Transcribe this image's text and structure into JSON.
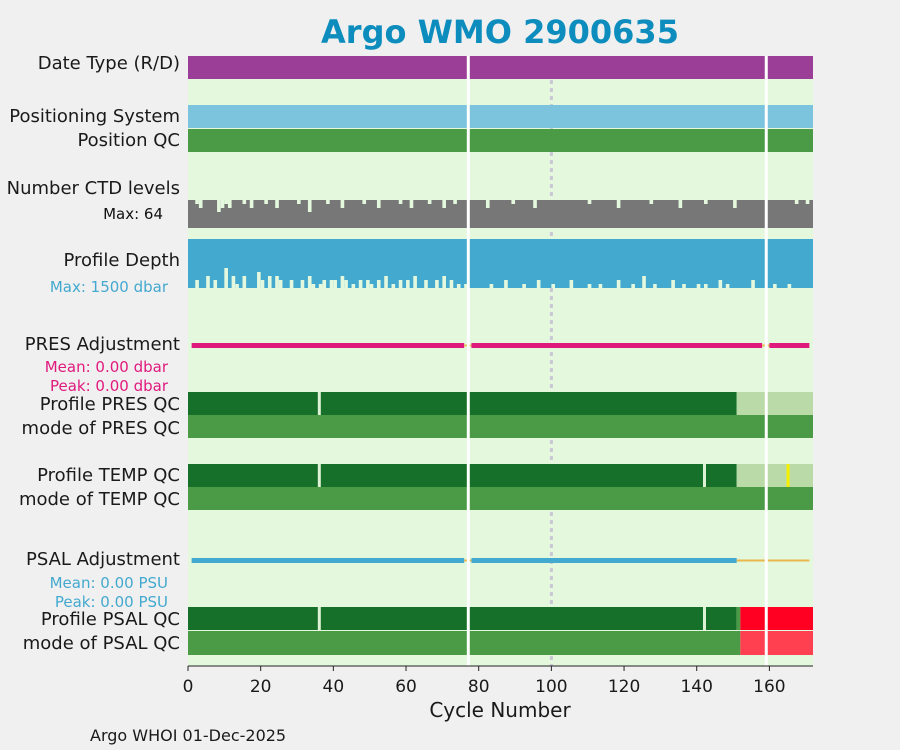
{
  "chart_data": {
    "type": "status-strip",
    "title": "Argo WMO 2900635",
    "xlabel": "Cycle Number",
    "xlim": [
      0,
      172
    ],
    "xticks": [
      0,
      20,
      40,
      60,
      80,
      100,
      120,
      140,
      160
    ],
    "xtick_labels": [
      "0",
      "20",
      "40",
      "60",
      "80",
      "100",
      "120",
      "140",
      "160"
    ],
    "reference_cycle": 100,
    "gaps": [
      77,
      159
    ],
    "credit": "Argo WHOI 01-Dec-2025",
    "rows": [
      {
        "label": "Date Type (R/D)",
        "segments": [
          {
            "from": 0,
            "to": 172,
            "color": "#9b3e97"
          }
        ]
      },
      {
        "label": "Positioning System",
        "segments": [
          {
            "from": 0,
            "to": 172,
            "color": "#7cc3de"
          }
        ]
      },
      {
        "label": "Position QC",
        "segments": [
          {
            "from": 0,
            "to": 172,
            "color": "#4a9a46"
          }
        ]
      },
      {
        "label": "Number CTD levels",
        "stat": "Max: 64",
        "color": "#777777",
        "breaks": [
          [
            2,
            1
          ],
          [
            3,
            2
          ],
          [
            8,
            3
          ],
          [
            9,
            2
          ],
          [
            10,
            1
          ],
          [
            11,
            2
          ],
          [
            15,
            1
          ],
          [
            17,
            2
          ],
          [
            21,
            1
          ],
          [
            24,
            2
          ],
          [
            30,
            1
          ],
          [
            33,
            3
          ],
          [
            38,
            1
          ],
          [
            42,
            2
          ],
          [
            48,
            1
          ],
          [
            52,
            2
          ],
          [
            58,
            1
          ],
          [
            61,
            2
          ],
          [
            66,
            1
          ],
          [
            70,
            2
          ],
          [
            73,
            1
          ],
          [
            82,
            2
          ],
          [
            89,
            1
          ],
          [
            95,
            2
          ],
          [
            110,
            1
          ],
          [
            118,
            2
          ],
          [
            127,
            1
          ],
          [
            135,
            2
          ],
          [
            142,
            1
          ],
          [
            150,
            2
          ],
          [
            167,
            1
          ],
          [
            170,
            1
          ]
        ]
      },
      {
        "label": "Profile Depth",
        "stat": "Max: 1500 dbar",
        "color": "#43a9cf",
        "breaks": [
          [
            2,
            2
          ],
          [
            5,
            3
          ],
          [
            7,
            2
          ],
          [
            10,
            5
          ],
          [
            12,
            3
          ],
          [
            13,
            1
          ],
          [
            15,
            3
          ],
          [
            19,
            4
          ],
          [
            20,
            2
          ],
          [
            22,
            3
          ],
          [
            24,
            3
          ],
          [
            25,
            2
          ],
          [
            28,
            2
          ],
          [
            31,
            2
          ],
          [
            33,
            3
          ],
          [
            34,
            1
          ],
          [
            36,
            1
          ],
          [
            37,
            2
          ],
          [
            39,
            2
          ],
          [
            40,
            2
          ],
          [
            42,
            3
          ],
          [
            43,
            2
          ],
          [
            45,
            1
          ],
          [
            47,
            2
          ],
          [
            49,
            2
          ],
          [
            50,
            1
          ],
          [
            52,
            2
          ],
          [
            54,
            3
          ],
          [
            56,
            1
          ],
          [
            58,
            2
          ],
          [
            60,
            2
          ],
          [
            62,
            3
          ],
          [
            65,
            2
          ],
          [
            68,
            2
          ],
          [
            70,
            3
          ],
          [
            72,
            2
          ],
          [
            74,
            1
          ],
          [
            76,
            1
          ],
          [
            83,
            1
          ],
          [
            87,
            2
          ],
          [
            92,
            1
          ],
          [
            96,
            2
          ],
          [
            100,
            1
          ],
          [
            105,
            2
          ],
          [
            110,
            1
          ],
          [
            113,
            1
          ],
          [
            118,
            2
          ],
          [
            122,
            1
          ],
          [
            125,
            3
          ],
          [
            128,
            1
          ],
          [
            133,
            2
          ],
          [
            136,
            1
          ],
          [
            140,
            1
          ],
          [
            142,
            1
          ],
          [
            146,
            2
          ],
          [
            148,
            1
          ],
          [
            155,
            2
          ],
          [
            161,
            1
          ],
          [
            165,
            1
          ]
        ]
      },
      {
        "label": "PRES Adjustment",
        "stats": [
          "Mean: 0.00 dbar",
          "Peak: 0.00 dbar"
        ],
        "color": "#e0197d",
        "lines": [
          {
            "from": 1,
            "to": 76,
            "color": "#e0197d",
            "width": 5
          },
          {
            "from": 76,
            "to": 78,
            "color": "#e8b84a",
            "width": 2
          },
          {
            "from": 78,
            "to": 158,
            "color": "#e0197d",
            "width": 5
          },
          {
            "from": 158,
            "to": 160,
            "color": "#e8b84a",
            "width": 2
          },
          {
            "from": 160,
            "to": 171,
            "color": "#e0197d",
            "width": 5
          }
        ]
      },
      {
        "label": "Profile PRES QC",
        "segments": [
          {
            "from": 0,
            "to": 151,
            "color": "#16702a"
          },
          {
            "from": 151,
            "to": 172,
            "color": "#badaa8"
          }
        ],
        "marks": [
          {
            "at": 36,
            "color": "#dff2d6"
          }
        ]
      },
      {
        "label": "mode of PRES QC",
        "segments": [
          {
            "from": 0,
            "to": 172,
            "color": "#4a9a46"
          }
        ]
      },
      {
        "label": "Profile TEMP QC",
        "segments": [
          {
            "from": 0,
            "to": 151,
            "color": "#16702a"
          },
          {
            "from": 151,
            "to": 172,
            "color": "#badaa8"
          }
        ],
        "marks": [
          {
            "at": 36,
            "color": "#dff2d6"
          },
          {
            "at": 142,
            "color": "#dff2d6"
          },
          {
            "at": 165,
            "color": "#f5f000"
          }
        ]
      },
      {
        "label": "mode of TEMP QC",
        "segments": [
          {
            "from": 0,
            "to": 172,
            "color": "#4a9a46"
          }
        ]
      },
      {
        "label": "PSAL Adjustment",
        "stats": [
          "Mean: 0.00 PSU",
          "Peak: 0.00 PSU"
        ],
        "color": "#43a9cf",
        "lines": [
          {
            "from": 1,
            "to": 76,
            "color": "#43a9cf",
            "width": 5
          },
          {
            "from": 76,
            "to": 78,
            "color": "#e8b84a",
            "width": 2
          },
          {
            "from": 78,
            "to": 151,
            "color": "#43a9cf",
            "width": 5
          },
          {
            "from": 151,
            "to": 171,
            "color": "#e8b84a",
            "width": 2
          }
        ]
      },
      {
        "label": "Profile PSAL QC",
        "segments": [
          {
            "from": 0,
            "to": 151,
            "color": "#16702a"
          },
          {
            "from": 151,
            "to": 152,
            "color": "#4a9a46"
          },
          {
            "from": 152,
            "to": 172,
            "color": "#ff0022"
          }
        ],
        "marks": [
          {
            "at": 36,
            "color": "#dff2d6"
          },
          {
            "at": 142,
            "color": "#dff2d6"
          }
        ]
      },
      {
        "label": "mode of PSAL QC",
        "segments": [
          {
            "from": 0,
            "to": 152,
            "color": "#4a9a46"
          },
          {
            "from": 152,
            "to": 172,
            "color": "#ff4050"
          }
        ]
      }
    ]
  },
  "colors": {
    "title": "#0d8dbd",
    "plot_bg": "#e3f8dd",
    "page_bg": "#f0f0f0"
  }
}
